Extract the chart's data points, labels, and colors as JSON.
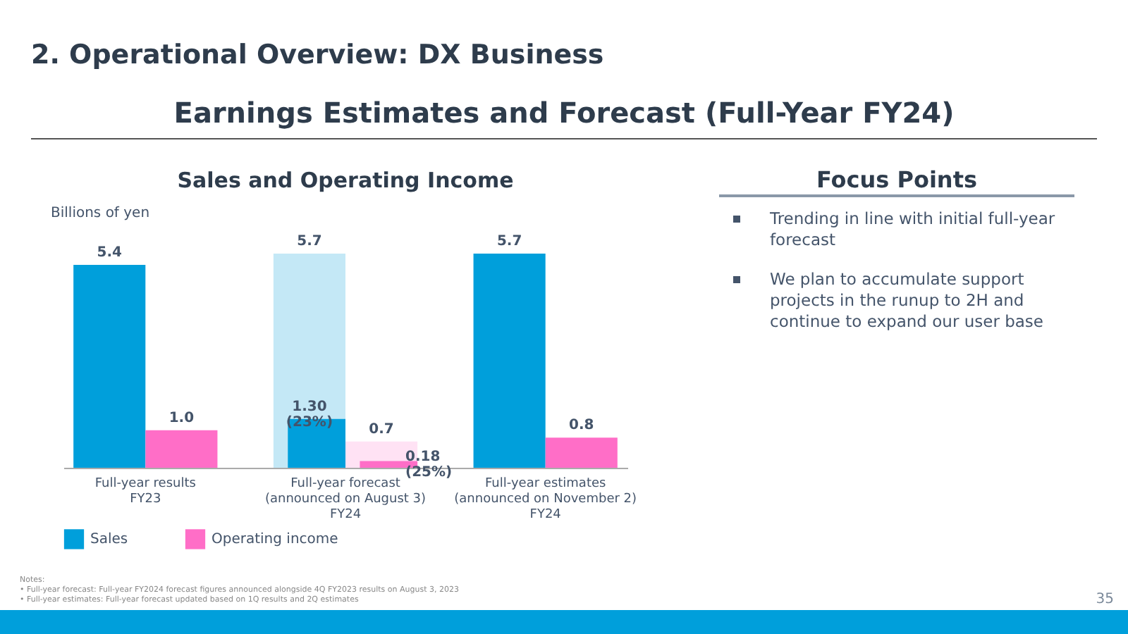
{
  "chart_data": [
    {
      "type": "other",
      "title": "2. Operational Overview: DX Business",
      "subtitle": "Earnings Estimates and Forecast (Full-Year FY24)"
    },
    {
      "type": "bar",
      "title": "Sales and Operating Income",
      "ylabel": "Billions of yen",
      "categories": [
        "Full-year results\n\nFY23",
        "Full-year forecast\n(announced on August 3)\nFY24",
        "Full-year estimates\n(announced on November 2)\nFY24"
      ],
      "series": [
        {
          "name": "Sales",
          "color": "#009fdb",
          "colors": [
            "#009fdb",
            "#c4e8f6",
            "#009fdb"
          ],
          "values": [
            5.4,
            5.7,
            5.7
          ],
          "value_labels": [
            "5.4",
            "5.7",
            "5.7"
          ]
        },
        {
          "name": "Operating income",
          "color": "#ff6ec7",
          "colors": [
            "#ff6ec7",
            "#ffe2f4",
            "#ff6ec7"
          ],
          "values": [
            1.0,
            0.7,
            0.8
          ],
          "value_labels": [
            "1.0",
            "0.7",
            "0.8"
          ]
        },
        {
          "color": "#009fdb",
          "values": [
            null,
            1.3,
            null
          ],
          "value_labels": [
            null,
            "1.30\n(23%)",
            null
          ]
        },
        {
          "color": "#ff6ec7",
          "values": [
            null,
            0.18,
            null
          ],
          "value_labels": [
            null,
            "0.18\n(25%)",
            null
          ]
        }
      ],
      "legend": "bottom",
      "annotations": [
        "Notes:",
        "• Full-year forecast: Full-year FY2024 forecast figures announced alongside 4Q FY2023 results on August 3, 2023",
        "• Full-year estimates: Full-year forecast updated based on 1Q results and 2Q estimates"
      ]
    },
    {
      "type": "other",
      "title": "Focus Points",
      "annotations": [
        "Trending in line with initial full-year forecast",
        "We plan to accumulate support projects in the runup to 2H and continue to expand our user base",
        "35"
      ]
    }
  ]
}
